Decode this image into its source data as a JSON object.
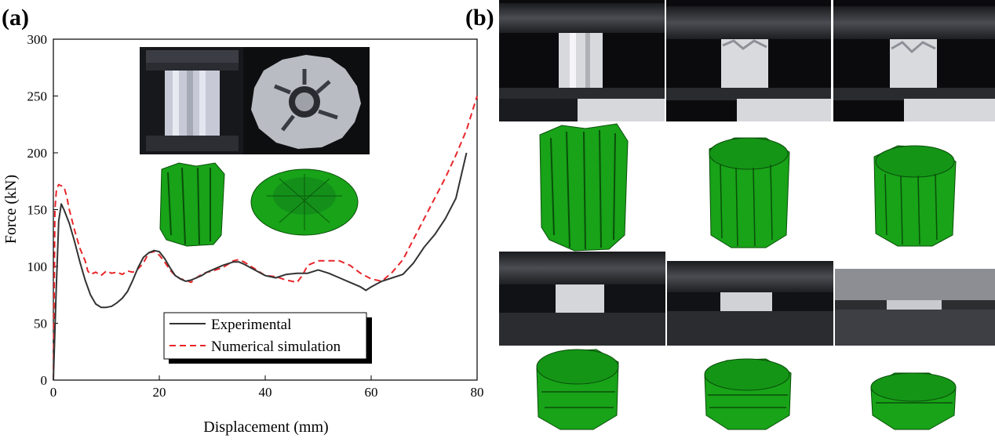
{
  "panels": {
    "a": "(a)",
    "b": "(b)"
  },
  "colors": {
    "experimental": "#333333",
    "numerical": "#e8262a",
    "fea_green": "#18a318",
    "fea_dark": "#0a4f0a"
  },
  "chart_data": {
    "type": "line",
    "xlabel": "Displacement (mm)",
    "ylabel": "Force (kN)",
    "xlim": [
      0,
      80
    ],
    "ylim": [
      0,
      300
    ],
    "xticks": [
      0,
      20,
      40,
      60,
      80
    ],
    "yticks": [
      0,
      50,
      100,
      150,
      200,
      250,
      300
    ],
    "legend_position": "bottom-center",
    "series": [
      {
        "name": "Experimental",
        "style": "solid",
        "x": [
          0,
          0.5,
          1.0,
          1.5,
          2.0,
          3,
          4,
          5,
          6,
          7,
          8,
          9,
          10,
          11,
          12,
          13,
          14,
          15,
          16,
          17,
          18,
          19,
          20,
          21,
          22,
          23,
          24,
          25,
          26,
          27,
          28,
          29,
          30,
          32,
          34,
          35,
          36,
          38,
          40,
          42,
          44,
          46,
          48,
          50,
          52,
          54,
          56,
          58,
          59,
          60,
          62,
          64,
          66,
          68,
          70,
          72,
          74,
          76,
          78
        ],
        "y": [
          0,
          75,
          140,
          155,
          150,
          138,
          122,
          104,
          88,
          75,
          67,
          64,
          64,
          65,
          68,
          72,
          78,
          88,
          99,
          108,
          112,
          114,
          113,
          107,
          99,
          92,
          89,
          87,
          88,
          90,
          92,
          95,
          97,
          101,
          104,
          104,
          102,
          97,
          92,
          90,
          93,
          94,
          94,
          97,
          94,
          90,
          86,
          82,
          79,
          82,
          87,
          90,
          93,
          103,
          117,
          128,
          142,
          160,
          200
        ]
      },
      {
        "name": "Numerical simulation",
        "style": "dashed",
        "x": [
          0,
          0.3,
          0.6,
          1.0,
          1.5,
          2.0,
          2.5,
          3,
          4,
          5,
          6,
          6.5,
          7,
          8,
          9,
          10,
          11,
          12,
          13,
          14,
          15,
          16,
          17,
          18,
          19,
          20,
          21,
          22,
          23,
          24,
          25,
          26,
          27,
          28,
          29,
          30,
          32,
          34,
          35,
          36,
          38,
          40,
          42,
          44,
          46,
          47,
          48,
          50,
          52,
          54,
          56,
          58,
          60,
          62,
          64,
          66,
          68,
          70,
          72,
          74,
          76,
          78,
          80
        ],
        "y": [
          0,
          150,
          168,
          172,
          171,
          170,
          162,
          150,
          132,
          116,
          105,
          96,
          93,
          95,
          92,
          96,
          94,
          95,
          93,
          96,
          95,
          98,
          103,
          112,
          113,
          110,
          104,
          97,
          92,
          89,
          88,
          86,
          90,
          93,
          95,
          96,
          99,
          105,
          106,
          104,
          98,
          92,
          91,
          88,
          86,
          92,
          101,
          105,
          105,
          105,
          101,
          94,
          89,
          87,
          95,
          106,
          124,
          142,
          160,
          178,
          198,
          220,
          250
        ]
      }
    ]
  },
  "images": {
    "inset_top_photo": "compression-test-photo",
    "inset_crushed_photo": "crushed-specimen-topview",
    "inset_fea_initial": "fea-model-initial",
    "inset_fea_crushed": "fea-model-crushed",
    "grid_rows": [
      "photo-row-1",
      "fea-row-1",
      "photo-row-2",
      "fea-row-2"
    ]
  }
}
